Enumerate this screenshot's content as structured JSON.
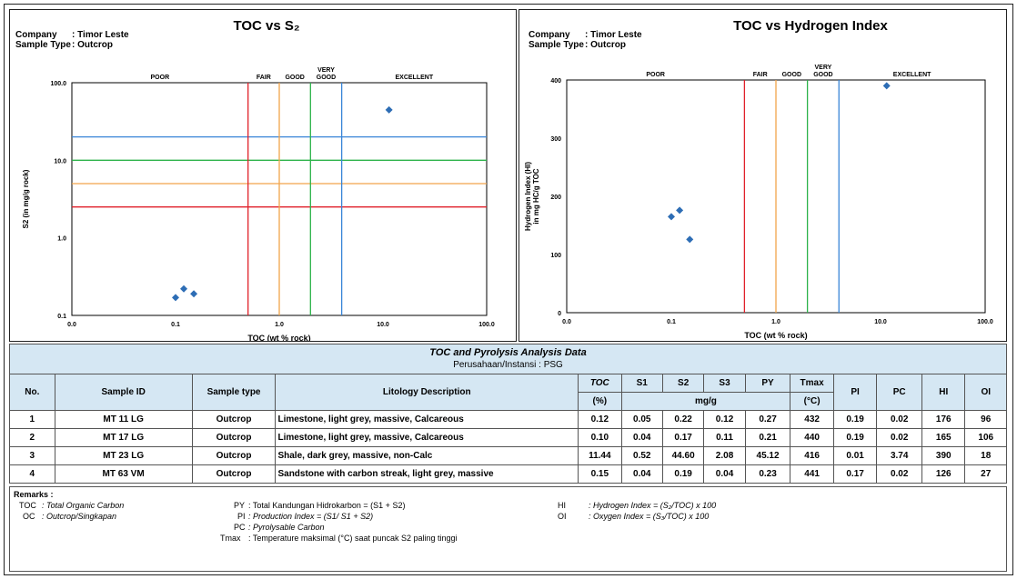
{
  "charts_meta": [
    {
      "title": "TOC vs S₂",
      "company_label": "Company",
      "company_value": ": Timor Leste",
      "sample_label": "Sample Type",
      "sample_value": ": Outcrop",
      "ylabel": "S2 (in mg/g rock)",
      "xlabel": "TOC (wt % rock)"
    },
    {
      "title": "TOC vs Hydrogen Index",
      "company_label": "Company",
      "company_value": ": Timor Leste",
      "sample_label": "Sample Type",
      "sample_value": ": Outcrop",
      "ylabel_line1": "Hydrogen Index (HI)",
      "ylabel_line2": "in mg HC/g TOC",
      "xlabel": "TOC (wt % rock)"
    }
  ],
  "chart_data": [
    {
      "type": "scatter",
      "title": "TOC vs S₂",
      "xlabel": "TOC (wt % rock)",
      "ylabel": "S2 (in mg/g rock)",
      "xscale": "log",
      "yscale": "log",
      "xlim": [
        0.01,
        100
      ],
      "ylim": [
        0.1,
        100
      ],
      "x_ticks": [
        "0.0",
        "0.1",
        "1.0",
        "10.0",
        "100.0"
      ],
      "y_ticks": [
        "0.1",
        "1.0",
        "10.0",
        "100.0"
      ],
      "x_tick_values": [
        0.01,
        0.1,
        1,
        10,
        100
      ],
      "y_tick_values": [
        0.1,
        1,
        10,
        100
      ],
      "category_labels": [
        "POOR",
        "FAIR",
        "GOOD",
        "VERY GOOD",
        "EXCELLENT"
      ],
      "vertical_lines": [
        {
          "x": 0.5,
          "color": "#e0202a"
        },
        {
          "x": 1,
          "color": "#f2a54a"
        },
        {
          "x": 2,
          "color": "#2db34a"
        },
        {
          "x": 4,
          "color": "#3a86d8"
        }
      ],
      "horizontal_lines": [
        {
          "y": 2.5,
          "color": "#e0202a"
        },
        {
          "y": 5,
          "color": "#f2a54a"
        },
        {
          "y": 10,
          "color": "#2db34a"
        },
        {
          "y": 20,
          "color": "#3a86d8"
        }
      ],
      "points": [
        {
          "x": 0.12,
          "y": 0.22
        },
        {
          "x": 0.1,
          "y": 0.17
        },
        {
          "x": 11.44,
          "y": 44.6
        },
        {
          "x": 0.15,
          "y": 0.19
        }
      ],
      "marker_color": "#2d6db5"
    },
    {
      "type": "scatter",
      "title": "TOC vs Hydrogen Index",
      "xlabel": "TOC (wt % rock)",
      "ylabel": "Hydrogen Index (HI) in mg HC/g TOC",
      "xscale": "log",
      "yscale": "linear",
      "xlim": [
        0.01,
        100
      ],
      "ylim": [
        0,
        400
      ],
      "x_ticks": [
        "0.0",
        "0.1",
        "1.0",
        "10.0",
        "100.0"
      ],
      "y_ticks": [
        "0",
        "100",
        "200",
        "300",
        "400"
      ],
      "x_tick_values": [
        0.01,
        0.1,
        1,
        10,
        100
      ],
      "y_tick_values": [
        0,
        100,
        200,
        300,
        400
      ],
      "category_labels": [
        "POOR",
        "FAIR",
        "GOOD",
        "VERY GOOD",
        "EXCELLENT"
      ],
      "vertical_lines": [
        {
          "x": 0.5,
          "color": "#e0202a"
        },
        {
          "x": 1,
          "color": "#f2a54a"
        },
        {
          "x": 2,
          "color": "#2db34a"
        },
        {
          "x": 4,
          "color": "#3a86d8"
        }
      ],
      "horizontal_lines": [],
      "points": [
        {
          "x": 0.12,
          "y": 176
        },
        {
          "x": 0.1,
          "y": 165
        },
        {
          "x": 11.44,
          "y": 390
        },
        {
          "x": 0.15,
          "y": 126
        }
      ],
      "marker_color": "#2d6db5"
    }
  ],
  "table": {
    "title": "TOC and Pyrolysis Analysis Data",
    "subtitle": "Perusahaan/Instansi : PSG",
    "headers": {
      "no": "No.",
      "sample_id": "Sample ID",
      "sample_type": "Sample type",
      "litology": "Litology Description",
      "toc": "TOC",
      "toc_unit": "(%)",
      "s1": "S1",
      "s2": "S2",
      "s3": "S3",
      "py": "PY",
      "mgg": "mg/g",
      "tmax": "Tmax",
      "tmax_unit": "(°C)",
      "pi": "PI",
      "pc": "PC",
      "hi": "HI",
      "oi": "OI"
    },
    "rows": [
      [
        "1",
        "MT 11 LG",
        "Outcrop",
        "Limestone, light grey, massive, Calcareous",
        "0.12",
        "0.05",
        "0.22",
        "0.12",
        "0.27",
        "432",
        "0.19",
        "0.02",
        "176",
        "96"
      ],
      [
        "2",
        "MT 17 LG",
        "Outcrop",
        "Limestone, light grey, massive, Calcareous",
        "0.10",
        "0.04",
        "0.17",
        "0.11",
        "0.21",
        "440",
        "0.19",
        "0.02",
        "165",
        "106"
      ],
      [
        "3",
        "MT 23 LG",
        "Outcrop",
        "Shale, dark grey, massive, non-Calc",
        "11.44",
        "0.52",
        "44.60",
        "2.08",
        "45.12",
        "416",
        "0.01",
        "3.74",
        "390",
        "18"
      ],
      [
        "4",
        "MT 63 VM",
        "Outcrop",
        "Sandstone with carbon streak, light grey, massive",
        "0.15",
        "0.04",
        "0.19",
        "0.04",
        "0.23",
        "441",
        "0.17",
        "0.02",
        "126",
        "27"
      ]
    ]
  },
  "remarks": {
    "title": "Remarks :",
    "toc_key": "TOC",
    "toc_val": ": Total Organic Carbon",
    "oc_key": "OC",
    "oc_val": ": Outcrop/Singkapan",
    "py_key": "PY",
    "py_val": ":  Total Kandungan Hidrokarbon = (S1 + S2)",
    "pi_key": "PI",
    "pi_val": ":  Production Index = (S1/ S1 + S2)",
    "pc_key": "PC",
    "pc_val": ":  Pyrolysable Carbon",
    "tmax_key": "Tmax",
    "tmax_val": ":  Temperature maksimal (°C) saat puncak S2 paling tinggi",
    "hi_key": "HI",
    "hi_val": ":  Hydrogen Index = (S₂/TOC) x 100",
    "oi_key": "OI",
    "oi_val": ":  Oxygen Index = (S₃/TOC) x 100"
  }
}
